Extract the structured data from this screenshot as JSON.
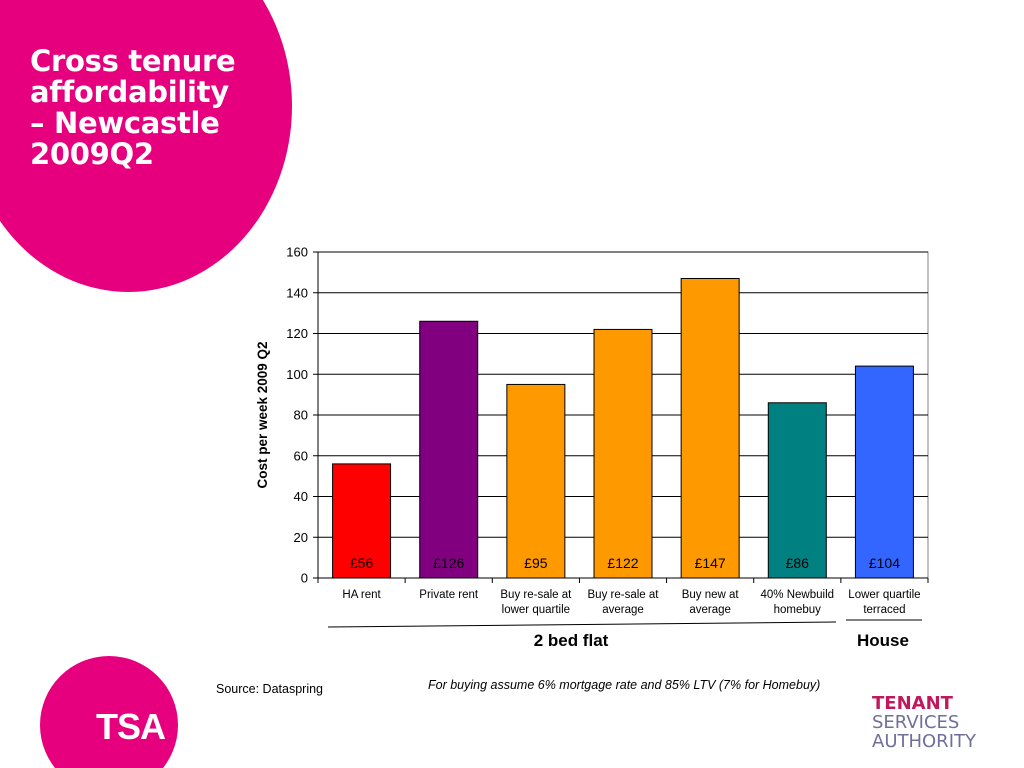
{
  "title": "Cross tenure\naffordability\n– Newcastle\n2009Q2",
  "accent_color": "#e6007e",
  "logo_text": "TSA",
  "org_name": [
    "TENANT",
    "SERVICES",
    "AUTHORITY"
  ],
  "source": "Source: Dataspring",
  "footnote": "For buying assume 6% mortgage rate and 85% LTV (7% for Homebuy)",
  "chart_data": {
    "type": "bar",
    "ylabel": "Cost per week 2009 Q2",
    "xlabel": "",
    "ylim": [
      0,
      160
    ],
    "yticks": [
      0,
      20,
      40,
      60,
      80,
      100,
      120,
      140,
      160
    ],
    "grid": true,
    "categories": [
      [
        "HA rent"
      ],
      [
        "Private rent"
      ],
      [
        "Buy re-sale at",
        "lower quartile"
      ],
      [
        "Buy re-sale at",
        "average"
      ],
      [
        "Buy new at",
        "average"
      ],
      [
        "40% Newbuild",
        "homebuy"
      ],
      [
        "Lower quartile",
        "terraced"
      ]
    ],
    "values": [
      56,
      126,
      95,
      122,
      147,
      86,
      104
    ],
    "value_labels": [
      "£56",
      "£126",
      "£95",
      "£122",
      "£147",
      "£86",
      "£104"
    ],
    "bar_colors": [
      "#ff0000",
      "#800080",
      "#ff9900",
      "#ff9900",
      "#ff9900",
      "#008080",
      "#3366ff"
    ],
    "groups": [
      {
        "label": "2 bed flat",
        "from": 0,
        "to": 5
      },
      {
        "label": "House",
        "from": 6,
        "to": 6
      }
    ]
  }
}
